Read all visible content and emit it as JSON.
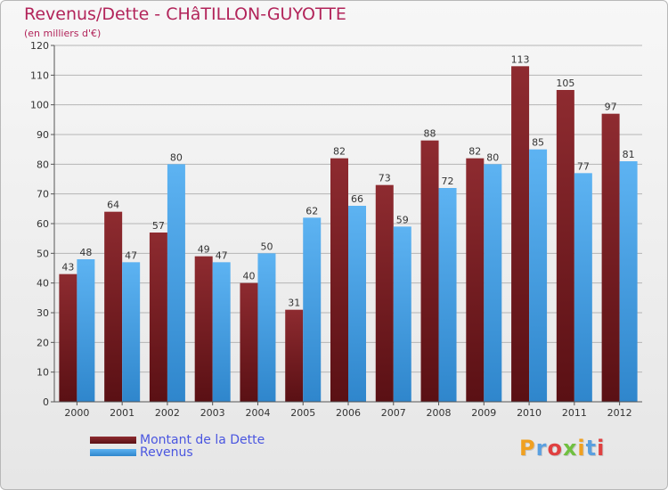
{
  "header": {
    "title": "Revenus/Dette - CHâTILLON-GUYOTTE",
    "subtitle": "(en milliers d'€)"
  },
  "legend": {
    "dette_label": "Montant de la Dette",
    "revenus_label": "Revenus"
  },
  "logo": {
    "text": "Proxiti"
  },
  "colors": {
    "dette": "#7a1f23",
    "revenus": "#4aa3e8",
    "title": "#b2245a",
    "legend_text": "#4a56e0"
  },
  "chart_data": {
    "type": "bar",
    "title": "Revenus/Dette - CHâTILLON-GUYOTTE",
    "subtitle": "(en milliers d'€)",
    "categories": [
      "2000",
      "2001",
      "2002",
      "2003",
      "2004",
      "2005",
      "2006",
      "2007",
      "2008",
      "2009",
      "2010",
      "2011",
      "2012"
    ],
    "series": [
      {
        "name": "Montant de la Dette",
        "values": [
          43,
          64,
          57,
          49,
          40,
          31,
          82,
          73,
          88,
          82,
          113,
          105,
          97
        ]
      },
      {
        "name": "Revenus",
        "values": [
          48,
          47,
          80,
          47,
          50,
          62,
          66,
          59,
          72,
          80,
          85,
          77,
          81
        ]
      }
    ],
    "ylim": [
      0,
      120
    ],
    "yticks": [
      0,
      10,
      20,
      30,
      40,
      50,
      60,
      70,
      80,
      90,
      100,
      110,
      120
    ],
    "grid": true,
    "legend_position": "bottom-left"
  }
}
